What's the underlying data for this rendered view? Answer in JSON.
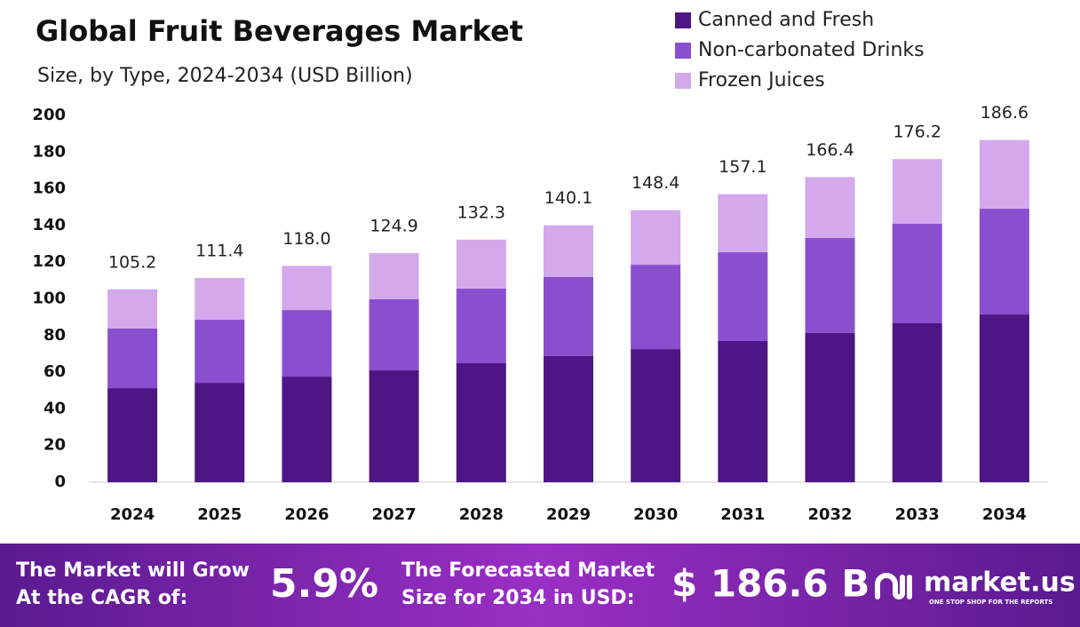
{
  "chart_data": {
    "type": "stacked-bar",
    "title": "Global Fruit Beverages Market",
    "subtitle": "Size, by Type, 2024-2034 (USD Billion)",
    "categories": [
      "2024",
      "2025",
      "2026",
      "2027",
      "2028",
      "2029",
      "2030",
      "2031",
      "2032",
      "2033",
      "2034"
    ],
    "series": [
      {
        "name": "Canned and Fresh",
        "color": "#4e1684",
        "values": [
          51.3,
          54.2,
          57.6,
          61.0,
          64.9,
          68.8,
          72.6,
          77.0,
          81.4,
          86.7,
          91.5
        ]
      },
      {
        "name": "Non-carbonated Drinks",
        "color": "#8a4fce",
        "values": [
          32.5,
          34.4,
          36.3,
          38.8,
          40.7,
          43.1,
          46.0,
          48.4,
          51.8,
          54.2,
          57.7
        ]
      },
      {
        "name": "Frozen Juices",
        "color": "#d3a9ec",
        "values": [
          21.4,
          22.8,
          24.1,
          25.1,
          26.7,
          28.2,
          29.8,
          31.7,
          33.2,
          35.3,
          37.4
        ]
      }
    ],
    "totals": {
      "values": [
        105.2,
        111.4,
        118,
        124.9,
        132.3,
        140.1,
        148.4,
        157.1,
        166.4,
        176.2,
        186.6
      ],
      "value_labels": [
        "105.2",
        "111.4",
        "118.0",
        "124.9",
        "132.3",
        "140.1",
        "148.4",
        "157.1",
        "166.4",
        "176.2",
        "186.6"
      ]
    },
    "ylim": [
      0,
      200
    ],
    "yticks": [
      0,
      20,
      40,
      60,
      80,
      100,
      120,
      140,
      160,
      180,
      200
    ],
    "grid": false,
    "legend": "top-right"
  },
  "footer": {
    "cagr_text": [
      "The Market will Grow",
      "At the CAGR of:"
    ],
    "cagr": "5.9%",
    "forecast_text": [
      "The Forecasted Market",
      "Size for 2034 in USD:"
    ],
    "forecast": "$ 186.6 B",
    "brand": "market.us",
    "tagline": "ONE STOP SHOP FOR THE REPORTS"
  }
}
